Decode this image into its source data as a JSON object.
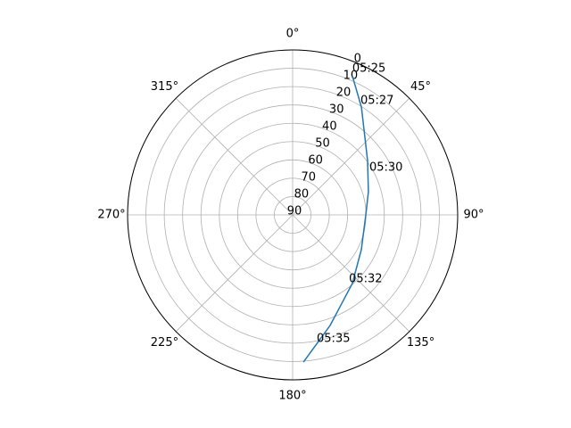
{
  "chart_data": {
    "type": "polar",
    "theta_zero": "N",
    "theta_direction": "clockwise",
    "rlim": [
      90,
      0
    ],
    "rticks": [
      0,
      10,
      20,
      30,
      40,
      50,
      60,
      70,
      80,
      90
    ],
    "thetaticks": [
      {
        "value": 0,
        "label": "0°"
      },
      {
        "value": 45,
        "label": "45°"
      },
      {
        "value": 90,
        "label": "90°"
      },
      {
        "value": 135,
        "label": "135°"
      },
      {
        "value": 180,
        "label": "180°"
      },
      {
        "value": 225,
        "label": "225°"
      },
      {
        "value": 270,
        "label": "270°"
      },
      {
        "value": 315,
        "label": "315°"
      }
    ],
    "grid": true,
    "series": [
      {
        "color": "#1f77b4",
        "theta": [
          23.2,
          32.5,
          54,
          73,
          90,
          116.9,
          139,
          161.3,
          175.8
        ],
        "r": [
          7.4,
          20.2,
          39.5,
          46.8,
          50.1,
          48,
          40.4,
          26.3,
          9.5
        ]
      }
    ],
    "annotations": [
      {
        "text": "05:25",
        "theta": 22.2,
        "r": 3.9
      },
      {
        "text": "05:27",
        "theta": 30.7,
        "r": 17.6
      },
      {
        "text": "05:30",
        "theta": 58.4,
        "r": 40.9
      },
      {
        "text": "05:32",
        "theta": 138.8,
        "r": 43.4
      },
      {
        "text": "05:35",
        "theta": 169,
        "r": 21.1
      }
    ]
  }
}
